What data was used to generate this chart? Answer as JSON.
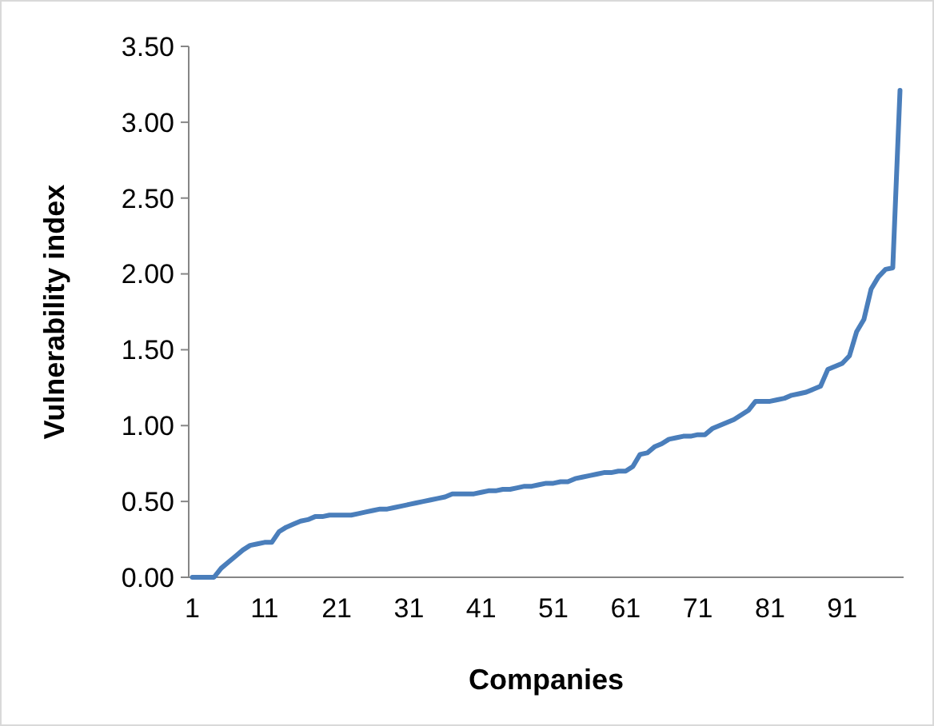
{
  "chart_data": {
    "type": "line",
    "xlabel": "Companies",
    "ylabel": "Vulnerability index",
    "categories": [
      "1",
      null,
      null,
      null,
      null,
      null,
      null,
      null,
      null,
      null,
      "11",
      null,
      null,
      null,
      null,
      null,
      null,
      null,
      null,
      null,
      "21",
      null,
      null,
      null,
      null,
      null,
      null,
      null,
      null,
      null,
      "31",
      null,
      null,
      null,
      null,
      null,
      null,
      null,
      null,
      null,
      "41",
      null,
      null,
      null,
      null,
      null,
      null,
      null,
      null,
      null,
      "51",
      null,
      null,
      null,
      null,
      null,
      null,
      null,
      null,
      null,
      "61",
      null,
      null,
      null,
      null,
      null,
      null,
      null,
      null,
      null,
      "71",
      null,
      null,
      null,
      null,
      null,
      null,
      null,
      null,
      null,
      "81",
      null,
      null,
      null,
      null,
      null,
      null,
      null,
      null,
      null,
      "91",
      null,
      null,
      null,
      null,
      null,
      null,
      null,
      null
    ],
    "series": [
      {
        "color": "#4a7ebb",
        "values": [
          0,
          0,
          0,
          0,
          0.06,
          0.1,
          0.14,
          0.18,
          0.21,
          0.22,
          0.23,
          0.23,
          0.3,
          0.33,
          0.35,
          0.37,
          0.38,
          0.4,
          0.4,
          0.41,
          0.41,
          0.41,
          0.41,
          0.42,
          0.43,
          0.44,
          0.45,
          0.45,
          0.46,
          0.47,
          0.48,
          0.49,
          0.5,
          0.51,
          0.52,
          0.53,
          0.55,
          0.55,
          0.55,
          0.55,
          0.56,
          0.57,
          0.57,
          0.58,
          0.58,
          0.59,
          0.6,
          0.6,
          0.61,
          0.62,
          0.62,
          0.63,
          0.63,
          0.65,
          0.66,
          0.67,
          0.68,
          0.69,
          0.69,
          0.7,
          0.7,
          0.73,
          0.81,
          0.82,
          0.86,
          0.88,
          0.91,
          0.92,
          0.93,
          0.93,
          0.94,
          0.94,
          0.98,
          1.0,
          1.02,
          1.04,
          1.07,
          1.1,
          1.16,
          1.16,
          1.16,
          1.17,
          1.18,
          1.2,
          1.21,
          1.22,
          1.24,
          1.26,
          1.37,
          1.39,
          1.41,
          1.46,
          1.62,
          1.7,
          1.9,
          1.98,
          2.03,
          2.04,
          3.21
        ]
      }
    ],
    "ylim": [
      0,
      3.5
    ],
    "yticks": [
      {
        "value": 0,
        "label": "0.00"
      },
      {
        "value": 0.5,
        "label": "0.50"
      },
      {
        "value": 1,
        "label": "1.00"
      },
      {
        "value": 1.5,
        "label": "1.50"
      },
      {
        "value": 2,
        "label": "2.00"
      },
      {
        "value": 2.5,
        "label": "2.50"
      },
      {
        "value": 3,
        "label": "3.00"
      },
      {
        "value": 3.5,
        "label": "3.50"
      }
    ],
    "grid": false,
    "marker": "none",
    "line_style": "solid"
  }
}
